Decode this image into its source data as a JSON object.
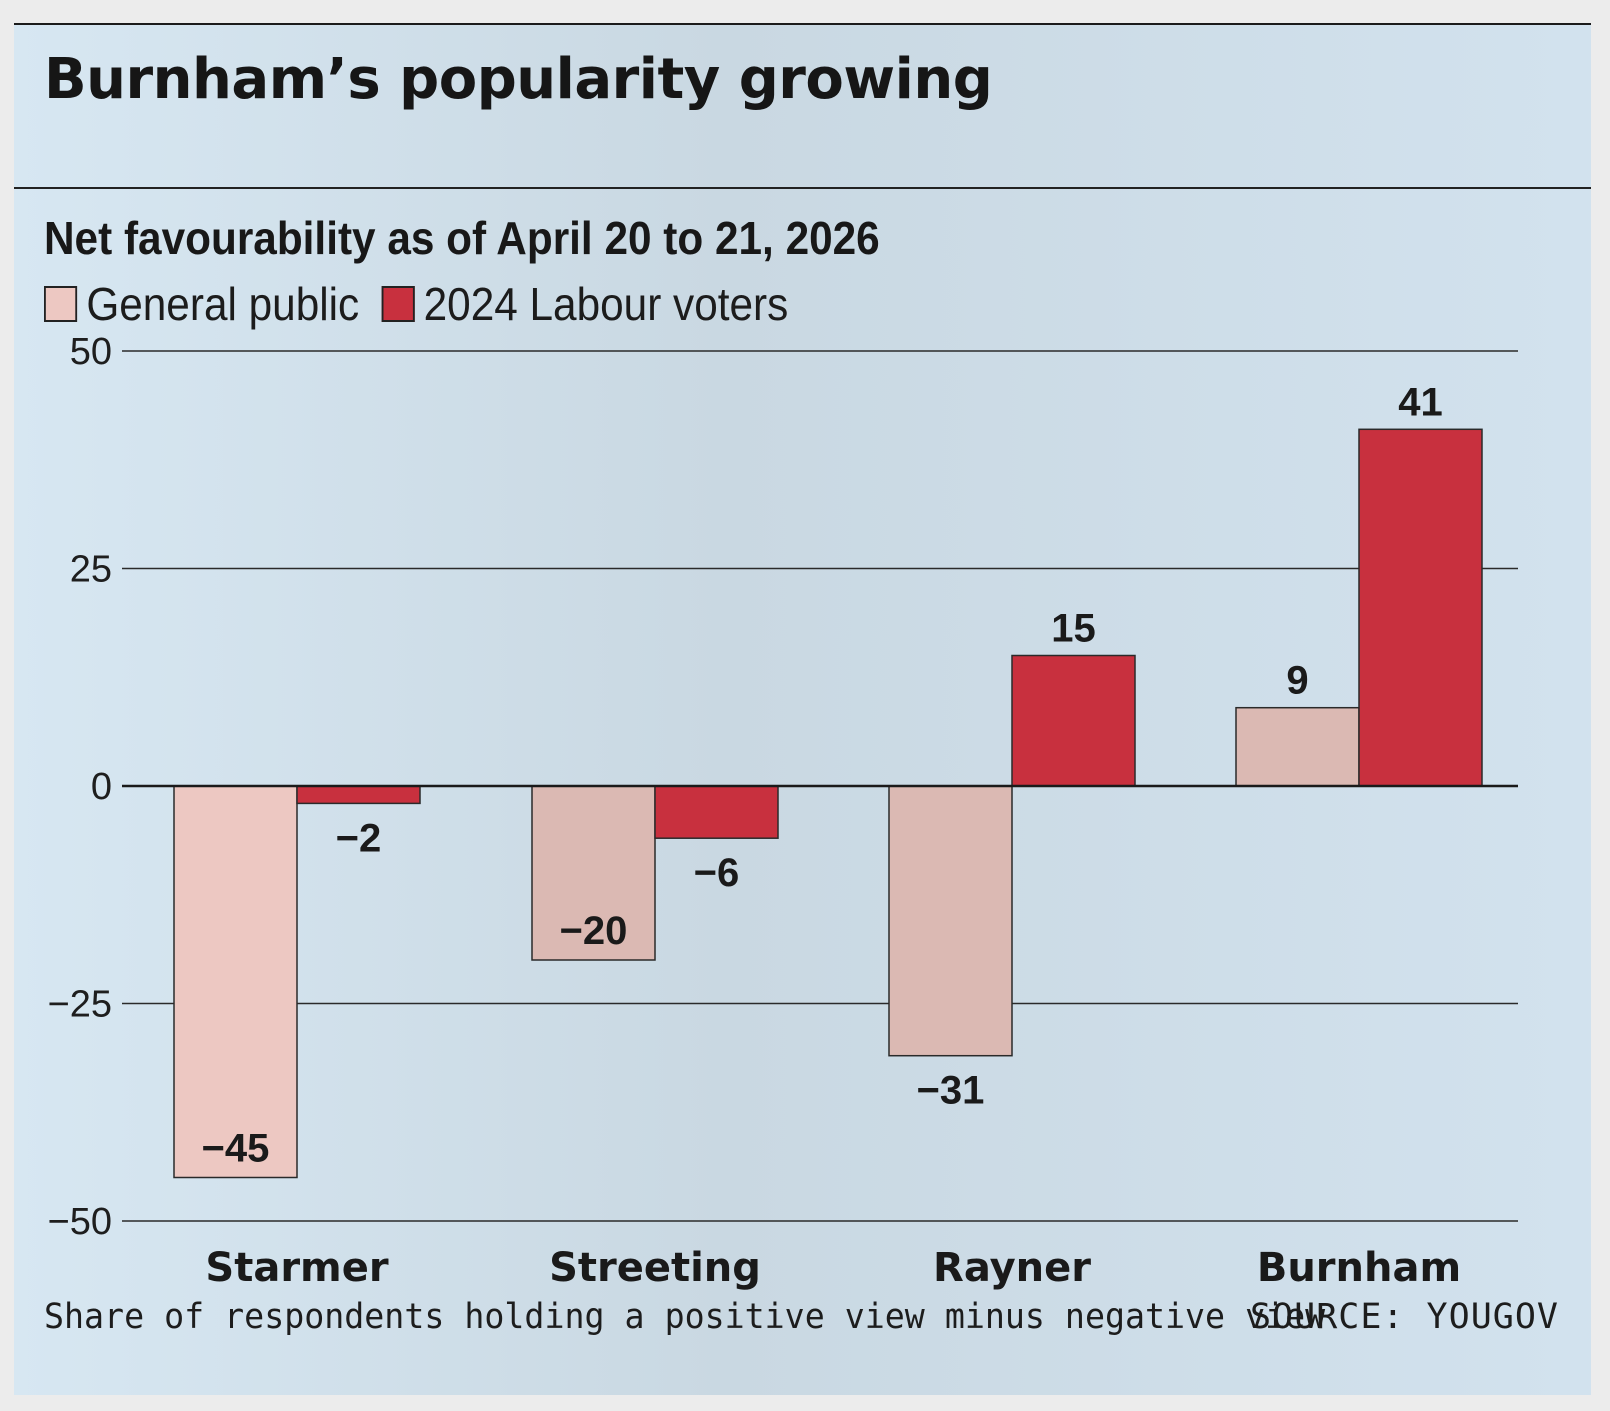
{
  "title": "Burnham’s popularity growing",
  "subtitle": "Net favourability as of April 20 to 21, 2026",
  "legend": [
    {
      "label": "General public",
      "color": "#edc8c2"
    },
    {
      "label": "2024 Labour voters",
      "color": "#c8303e"
    }
  ],
  "footnote": "Share of respondents holding a positive view minus negative view",
  "source": "SOURCE: YOUGOV",
  "chart_data": {
    "type": "bar",
    "categories": [
      "Starmer",
      "Streeting",
      "Rayner",
      "Burnham"
    ],
    "series": [
      {
        "name": "General public",
        "values": [
          -45,
          -20,
          -31,
          9
        ],
        "labels": [
          "−45",
          "−20",
          "−31",
          "9"
        ],
        "color": "#edc8c2"
      },
      {
        "name": "2024 Labour voters",
        "values": [
          -2,
          -6,
          15,
          41
        ],
        "labels": [
          "−2",
          "−6",
          "15",
          "41"
        ],
        "color": "#c8303e"
      }
    ],
    "ylim": [
      -50,
      50
    ],
    "yticks": [
      50,
      25,
      0,
      -25,
      -50
    ],
    "ytick_labels": [
      "50",
      "25",
      "0",
      "−25",
      "−50"
    ],
    "grid": true,
    "legend_position": "top-left"
  }
}
